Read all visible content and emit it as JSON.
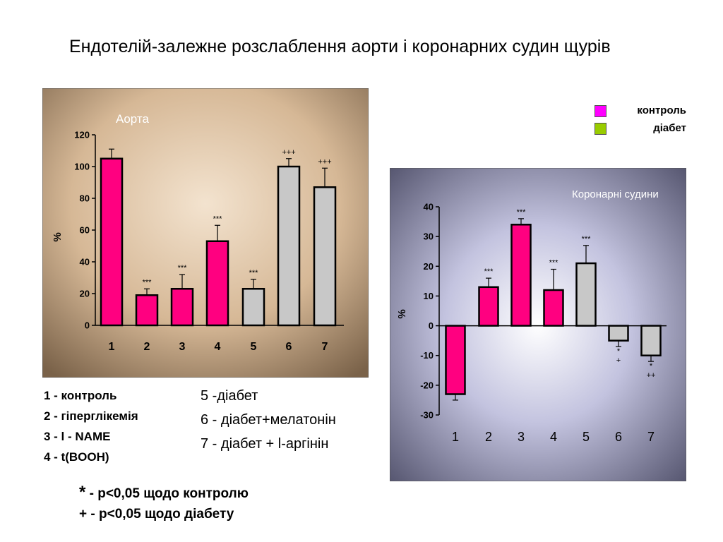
{
  "title": "Ендотелій-залежне розслаблення аорти і коронарних судин щурів",
  "legend": [
    {
      "label": "контроль",
      "color": "#ff00ff"
    },
    {
      "label": "діабет",
      "color": "#99cc00"
    }
  ],
  "colors": {
    "pink": "#ff0080",
    "gray": "#c8c8c8"
  },
  "chart_data": [
    {
      "type": "bar",
      "title": "Аорта",
      "ylabel": "%",
      "ylim": [
        0,
        120
      ],
      "yticks": [
        "0",
        "20",
        "40",
        "60",
        "80",
        "100",
        "120"
      ],
      "categories": [
        "1",
        "2",
        "3",
        "4",
        "5",
        "6",
        "7"
      ],
      "values": [
        105,
        19,
        23,
        53,
        23,
        100,
        87
      ],
      "errors": [
        6,
        4,
        9,
        10,
        6,
        5,
        12
      ],
      "bar_colors": [
        "pink",
        "pink",
        "pink",
        "pink",
        "gray",
        "gray",
        "gray"
      ],
      "annotations": [
        "",
        "***",
        "***",
        "***",
        "***",
        "+++",
        "+++"
      ]
    },
    {
      "type": "bar",
      "title": "Коронарні судини",
      "ylabel": "%",
      "ylim": [
        -30,
        40
      ],
      "yticks": [
        "40",
        "30",
        "20",
        "10",
        "0",
        "-10",
        "-20",
        "-30"
      ],
      "categories": [
        "1",
        "2",
        "3",
        "4",
        "5",
        "6",
        "7"
      ],
      "values": [
        -23,
        13,
        34,
        12,
        21,
        -5,
        -10
      ],
      "errors": [
        2,
        3,
        2,
        7,
        6,
        2,
        2
      ],
      "bar_colors": [
        "pink",
        "pink",
        "pink",
        "pink",
        "gray",
        "gray",
        "gray"
      ],
      "annotations": [
        "",
        "***",
        "***",
        "***",
        "***",
        "*\n+",
        "*\n++"
      ]
    }
  ],
  "groups_left": [
    "1 - контроль",
    "2 - гіперглікемія",
    "3 - l - NAME",
    "4 - t(BOOH)"
  ],
  "groups_right": [
    "5 -діабет",
    "6 - діабет+мелатонін",
    "7 - діабет + l-аргінін"
  ],
  "notes": [
    {
      "symbol": "*",
      "text": " - p<0,05 щодо контролю"
    },
    {
      "symbol": "+",
      "text": " - p<0,05 щодо діабету"
    }
  ]
}
